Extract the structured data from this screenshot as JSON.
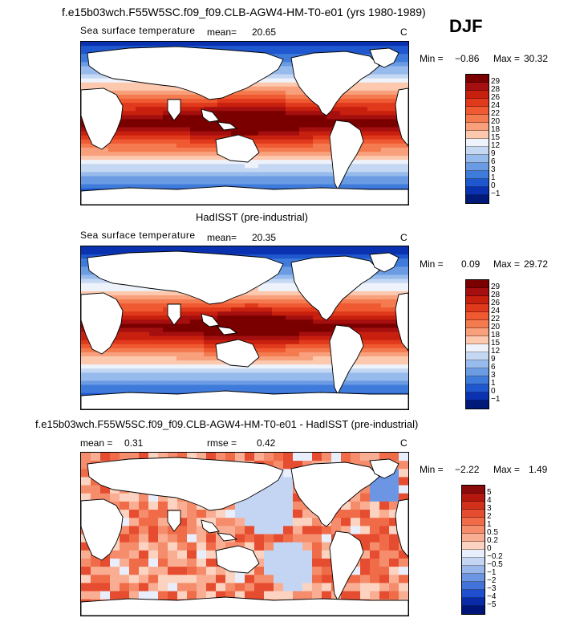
{
  "season_label": "DJF",
  "panels": [
    {
      "title": "f.e15b03wch.F55W5SC.f09_f09.CLB-AGW4-HM-T0-e01 (yrs 1980-1989)",
      "variable": "Sea surface temperature",
      "mean_label": "mean=",
      "mean_value": "20.65",
      "units": "C",
      "min_label": "Min =",
      "min_value": "−0.86",
      "max_label": "Max =",
      "max_value": "30.32",
      "colorbar_labels": [
        "29",
        "28",
        "26",
        "24",
        "22",
        "20",
        "18",
        "15",
        "12",
        "9",
        "6",
        "3",
        "1",
        "0",
        "−1"
      ],
      "colorbar_colors": [
        "#7a0000",
        "#a50f0f",
        "#c8200e",
        "#e0391c",
        "#ef5a32",
        "#f47a50",
        "#f8a07c",
        "#fcc8ae",
        "#eef3fb",
        "#c5d8f3",
        "#97bbec",
        "#6a9be3",
        "#3f7bdb",
        "#1f57cf",
        "#0a32b0",
        "#001a7a"
      ]
    },
    {
      "title": "HadISST (pre-industrial)",
      "variable": "Sea surface temperature",
      "mean_label": "mean=",
      "mean_value": "20.35",
      "units": "C",
      "min_label": "Min =",
      "min_value": "0.09",
      "max_label": "Max =",
      "max_value": "29.72",
      "colorbar_labels": [
        "29",
        "28",
        "26",
        "24",
        "22",
        "20",
        "18",
        "15",
        "12",
        "9",
        "6",
        "3",
        "1",
        "0",
        "−1"
      ],
      "colorbar_colors": [
        "#7a0000",
        "#a50f0f",
        "#c8200e",
        "#e0391c",
        "#ef5a32",
        "#f47a50",
        "#f8a07c",
        "#fcc8ae",
        "#eef3fb",
        "#c5d8f3",
        "#97bbec",
        "#6a9be3",
        "#3f7bdb",
        "#1f57cf",
        "#0a32b0",
        "#001a7a"
      ]
    },
    {
      "title": "f.e15b03wch.F55W5SC.f09_f09.CLB-AGW4-HM-T0-e01 - HadISST (pre-industrial)",
      "mean_label": "mean =",
      "mean_value": "0.31",
      "rmse_label": "rmse =",
      "rmse_value": "0.42",
      "units": "C",
      "min_label": "Min =",
      "min_value": "−2.22",
      "max_label": "Max =",
      "max_value": "1.49",
      "colorbar_labels": [
        "5",
        "4",
        "3",
        "2",
        "1",
        "0.5",
        "0.2",
        "0",
        "−0.2",
        "−0.5",
        "−1",
        "−2",
        "−3",
        "−4",
        "−5"
      ],
      "colorbar_colors": [
        "#8b0a0a",
        "#b5170f",
        "#d2301b",
        "#e64c2f",
        "#f06b48",
        "#f58c6b",
        "#f9ae93",
        "#fcd3c0",
        "#e8eefb",
        "#c4d5f4",
        "#9ab7ec",
        "#6c96e3",
        "#4173da",
        "#1f4ed0",
        "#0a2ba8",
        "#00157a"
      ]
    }
  ],
  "icons": [
    "land-outline-icon"
  ]
}
